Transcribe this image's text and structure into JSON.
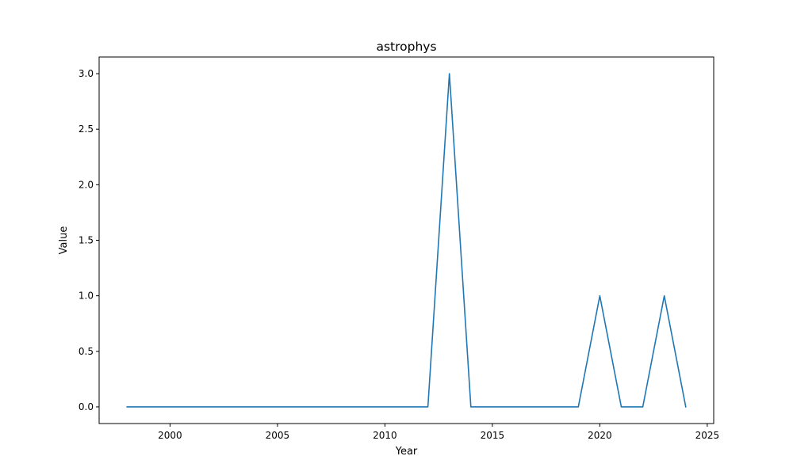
{
  "chart_data": {
    "type": "line",
    "title": "astrophys",
    "xlabel": "Year",
    "ylabel": "Value",
    "x": [
      1998,
      1999,
      2000,
      2001,
      2002,
      2003,
      2004,
      2005,
      2006,
      2007,
      2008,
      2009,
      2010,
      2011,
      2012,
      2013,
      2014,
      2015,
      2016,
      2017,
      2018,
      2019,
      2020,
      2021,
      2022,
      2023,
      2024
    ],
    "series": [
      {
        "values": [
          0,
          0,
          0,
          0,
          0,
          0,
          0,
          0,
          0,
          0,
          0,
          0,
          0,
          0,
          0,
          3,
          0,
          0,
          0,
          0,
          0,
          0,
          1,
          0,
          0,
          1,
          0
        ],
        "color": "#1f77b4"
      }
    ],
    "xlim": [
      1996.7,
      2025.3
    ],
    "ylim": [
      -0.15,
      3.15
    ],
    "xticks": [
      2000,
      2005,
      2010,
      2015,
      2020,
      2025
    ],
    "xtick_labels": [
      "2000",
      "2005",
      "2010",
      "2015",
      "2020",
      "2025"
    ],
    "yticks": [
      0,
      0.5,
      1,
      1.5,
      2,
      2.5,
      3
    ],
    "ytick_labels": [
      "0.0",
      "0.5",
      "1.0",
      "1.5",
      "2.0",
      "2.5",
      "3.0"
    ],
    "grid": false,
    "legend": "none"
  }
}
